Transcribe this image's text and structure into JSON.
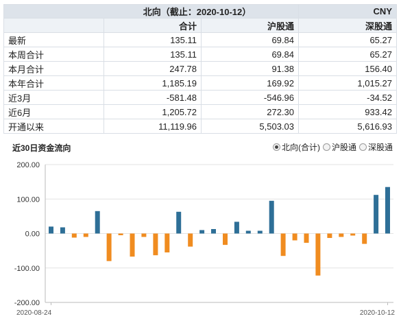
{
  "table": {
    "title": "北向（截止：2020-10-12）",
    "currency": "CNY",
    "columns": [
      "合计",
      "沪股通",
      "深股通"
    ],
    "rows": [
      {
        "label": "最新",
        "values": [
          "135.11",
          "69.84",
          "65.27"
        ]
      },
      {
        "label": "本周合计",
        "values": [
          "135.11",
          "69.84",
          "65.27"
        ]
      },
      {
        "label": "本月合计",
        "values": [
          "247.78",
          "91.38",
          "156.40"
        ]
      },
      {
        "label": "本年合计",
        "values": [
          "1,185.19",
          "169.92",
          "1,015.27"
        ]
      },
      {
        "label": "近3月",
        "values": [
          "-581.48",
          "-546.96",
          "-34.52"
        ]
      },
      {
        "label": "近6月",
        "values": [
          "1,205.72",
          "272.30",
          "933.42"
        ]
      },
      {
        "label": "开通以来",
        "values": [
          "11,119.96",
          "5,503.03",
          "5,616.93"
        ]
      }
    ]
  },
  "chart_section": {
    "title": "近30日资金流向",
    "legend": [
      {
        "label": "北向(合计)",
        "selected": true
      },
      {
        "label": "沪股通",
        "selected": false
      },
      {
        "label": "深股通",
        "selected": false
      }
    ]
  },
  "colors": {
    "positive": "#2e6f97",
    "negative": "#f08c20",
    "grid": "#e3e3e3",
    "axis": "#bbbbbb"
  },
  "chart_data": {
    "type": "bar",
    "title": "近30日资金流向",
    "ylim": [
      -200,
      200
    ],
    "yticks": [
      "200.00",
      "100.00",
      "0.00",
      "-100.00",
      "-200.00"
    ],
    "xtick_labels": [
      "2020-08-24",
      "2020-10-12"
    ],
    "series": [
      {
        "name": "北向(合计)",
        "values": [
          20,
          18,
          -12,
          -10,
          65,
          -80,
          -5,
          -67,
          -10,
          -63,
          -55,
          63,
          -38,
          10,
          13,
          -33,
          34,
          8,
          8,
          95,
          -65,
          -20,
          -27,
          -122,
          -13,
          -10,
          -6,
          -30,
          112,
          135
        ]
      }
    ]
  }
}
